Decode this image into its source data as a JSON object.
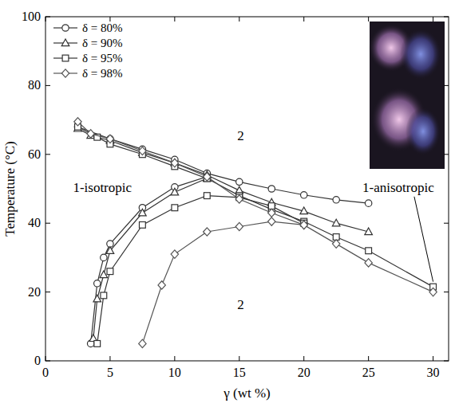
{
  "chart_data": {
    "type": "line",
    "x_label": "γ (wt %)",
    "y_label": "Temperature (°C)",
    "xlim": [
      0,
      31.2
    ],
    "ylim": [
      0,
      100
    ],
    "xticks": [
      0,
      5,
      10,
      15,
      20,
      25,
      30
    ],
    "yticks": [
      0,
      20,
      40,
      60,
      80,
      100
    ],
    "grid": false,
    "legend": "upper left",
    "series": [
      {
        "name": "δ = 80%",
        "color": "#333333",
        "marker": "circle",
        "line_style": "solid",
        "branches": [
          {
            "x": [
              2.5,
              5,
              7.5,
              10,
              12.5,
              15,
              17.5,
              20,
              22.5,
              25
            ],
            "values": [
              68,
              64.5,
              61.5,
              58.5,
              54.5,
              52,
              50,
              48.2,
              46.8,
              45.8
            ]
          },
          {
            "x": [
              3.5,
              4,
              4.5,
              5,
              7.5,
              10,
              12.5
            ],
            "values": [
              5,
              22.5,
              30,
              34,
              44.5,
              50.5,
              53.5
            ]
          }
        ]
      },
      {
        "name": "δ = 90%",
        "color": "#333333",
        "marker": "triangle",
        "line_style": "solid",
        "branches": [
          {
            "x": [
              2.5,
              3.5,
              5,
              7.5,
              10,
              12.5,
              15,
              17.5,
              20,
              22.5,
              25
            ],
            "values": [
              67.5,
              65.5,
              64,
              60.5,
              57.5,
              54,
              49.5,
              46,
              43.5,
              40,
              37.5
            ]
          },
          {
            "x": [
              3.7,
              4,
              4.5,
              5,
              7.5,
              10,
              12.5
            ],
            "values": [
              6.5,
              18,
              25,
              32,
              43,
              49,
              53
            ]
          }
        ]
      },
      {
        "name": "δ = 95%",
        "color": "#333333",
        "marker": "square",
        "line_style": "solid",
        "branches": [
          {
            "x": [
              2.5,
              4,
              5,
              7.5,
              10,
              12.5,
              15,
              17.5,
              20,
              22.5,
              25,
              30
            ],
            "values": [
              68,
              65,
              63,
              60,
              56.5,
              53,
              48,
              44,
              40.5,
              36,
              32,
              21.5
            ]
          },
          {
            "x": [
              4,
              4.5,
              5,
              7.5,
              10,
              12.5,
              15,
              17.5,
              20
            ],
            "values": [
              5,
              19,
              26,
              39.5,
              44.5,
              48,
              47.5,
              45,
              40
            ]
          }
        ]
      },
      {
        "name": "δ = 98%",
        "color": "#555555",
        "marker": "diamond",
        "line_style": "solid",
        "branches": [
          {
            "x": [
              2.5,
              3.5,
              5,
              7.5,
              10,
              12.5,
              15,
              17.5,
              20,
              22.5,
              25,
              30
            ],
            "values": [
              69.5,
              66,
              64.5,
              61,
              57.5,
              53.5,
              47,
              43,
              39.5,
              34,
              28.5,
              20
            ]
          },
          {
            "x": [
              7.5,
              9,
              10,
              12.5,
              15,
              17.5,
              20
            ],
            "values": [
              5,
              22,
              31,
              37.5,
              39,
              40.5,
              39.5
            ]
          }
        ]
      }
    ],
    "annotations": [
      {
        "text": "2",
        "x": 15.1,
        "y": 65.5
      },
      {
        "text": "2",
        "x": 15.1,
        "y": 16.5
      },
      {
        "text": "1-isotropic",
        "x": 4.4,
        "y": 50.5
      },
      {
        "text": "1-anisotropic",
        "x": 27.3,
        "y": 50.5,
        "arrow_to": [
          30,
          23
        ]
      }
    ]
  }
}
